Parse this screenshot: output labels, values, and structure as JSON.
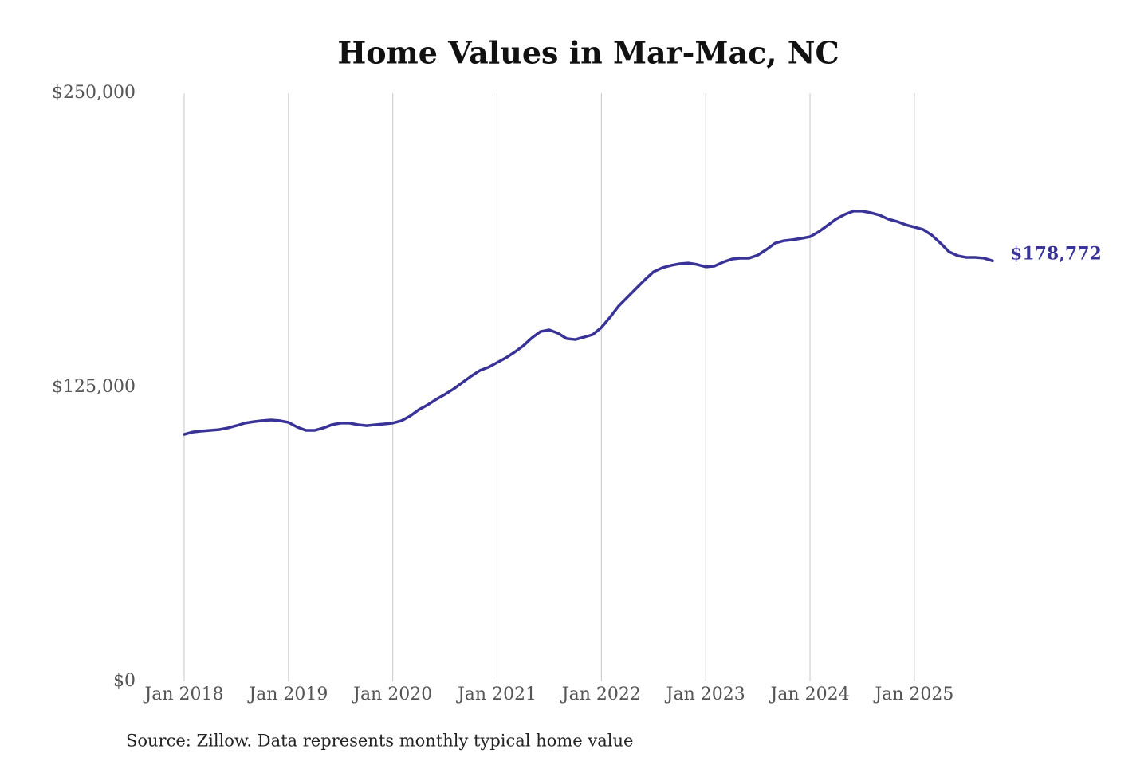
{
  "chart_data": {
    "type": "line",
    "title": "Home Values in Mar-Mac, NC",
    "note": "Source: Zillow. Data represents monthly typical home value",
    "x": [
      "2018-01",
      "2018-02",
      "2018-03",
      "2018-04",
      "2018-05",
      "2018-06",
      "2018-07",
      "2018-08",
      "2018-09",
      "2018-10",
      "2018-11",
      "2018-12",
      "2019-01",
      "2019-02",
      "2019-03",
      "2019-04",
      "2019-05",
      "2019-06",
      "2019-07",
      "2019-08",
      "2019-09",
      "2019-10",
      "2019-11",
      "2019-12",
      "2020-01",
      "2020-02",
      "2020-03",
      "2020-04",
      "2020-05",
      "2020-06",
      "2020-07",
      "2020-08",
      "2020-09",
      "2020-10",
      "2020-11",
      "2020-12",
      "2021-01",
      "2021-02",
      "2021-03",
      "2021-04",
      "2021-05",
      "2021-06",
      "2021-07",
      "2021-08",
      "2021-09",
      "2021-10",
      "2021-11",
      "2021-12",
      "2022-01",
      "2022-02",
      "2022-03",
      "2022-04",
      "2022-05",
      "2022-06",
      "2022-07",
      "2022-08",
      "2022-09",
      "2022-10",
      "2022-11",
      "2022-12",
      "2023-01",
      "2023-02",
      "2023-03",
      "2023-04",
      "2023-05",
      "2023-06",
      "2023-07",
      "2023-08",
      "2023-09",
      "2023-10",
      "2023-11",
      "2023-12",
      "2024-01",
      "2024-02",
      "2024-03",
      "2024-04",
      "2024-05",
      "2024-06",
      "2024-07",
      "2024-08",
      "2024-09",
      "2024-10",
      "2024-11",
      "2024-12",
      "2025-01",
      "2025-02",
      "2025-03",
      "2025-04",
      "2025-05",
      "2025-06",
      "2025-07",
      "2025-08",
      "2025-09",
      "2025-10"
    ],
    "series": [
      {
        "name": "Mar-Mac, NC",
        "color": "#3a3397",
        "values": [
          105000,
          106000,
          106400,
          106700,
          107000,
          107700,
          108700,
          109800,
          110400,
          110800,
          111100,
          110800,
          110100,
          108100,
          106700,
          106700,
          107700,
          109100,
          109800,
          109800,
          109100,
          108700,
          109100,
          109400,
          109800,
          110800,
          112800,
          115500,
          117500,
          119900,
          122000,
          124300,
          127000,
          129700,
          132100,
          133500,
          135500,
          137500,
          139900,
          142600,
          146000,
          148700,
          149400,
          148000,
          145700,
          145300,
          146300,
          147400,
          150400,
          154800,
          159600,
          163300,
          167000,
          170700,
          174100,
          175800,
          176800,
          177500,
          177800,
          177200,
          176200,
          176500,
          178200,
          179500,
          179900,
          179900,
          181200,
          183600,
          186300,
          187300,
          187700,
          188300,
          189000,
          191100,
          193800,
          196500,
          198500,
          199900,
          199900,
          199200,
          198200,
          196500,
          195500,
          194100,
          193100,
          192100,
          189700,
          186300,
          182600,
          180900,
          180200,
          180200,
          179900,
          178772
        ],
        "value_labels": [
          null,
          null,
          null,
          null,
          null,
          null,
          null,
          null,
          null,
          null,
          null,
          null,
          null,
          null,
          null,
          null,
          null,
          null,
          null,
          null,
          null,
          null,
          null,
          null,
          null,
          null,
          null,
          null,
          null,
          null,
          null,
          null,
          null,
          null,
          null,
          null,
          null,
          null,
          null,
          null,
          null,
          null,
          null,
          null,
          null,
          null,
          null,
          null,
          null,
          null,
          null,
          null,
          null,
          null,
          null,
          null,
          null,
          null,
          null,
          null,
          null,
          null,
          null,
          null,
          null,
          null,
          null,
          null,
          null,
          null,
          null,
          null,
          null,
          null,
          null,
          null,
          null,
          null,
          null,
          null,
          null,
          null,
          null,
          null,
          null,
          null,
          null,
          null,
          null,
          null,
          null,
          null,
          null,
          "$178,772"
        ]
      }
    ],
    "xlim": [
      "2018-01",
      "2025-10"
    ],
    "xticks": [
      {
        "value": "2018-01",
        "label": "Jan 2018"
      },
      {
        "value": "2019-01",
        "label": "Jan 2019"
      },
      {
        "value": "2020-01",
        "label": "Jan 2020"
      },
      {
        "value": "2021-01",
        "label": "Jan 2021"
      },
      {
        "value": "2022-01",
        "label": "Jan 2022"
      },
      {
        "value": "2023-01",
        "label": "Jan 2023"
      },
      {
        "value": "2024-01",
        "label": "Jan 2024"
      },
      {
        "value": "2025-01",
        "label": "Jan 2025"
      }
    ],
    "ylim": [
      0,
      250000
    ],
    "yticks": [
      {
        "value": 0,
        "label": "$0"
      },
      {
        "value": 125000,
        "label": "$125,000"
      },
      {
        "value": 250000,
        "label": "$250,000"
      }
    ],
    "grid": "x"
  }
}
